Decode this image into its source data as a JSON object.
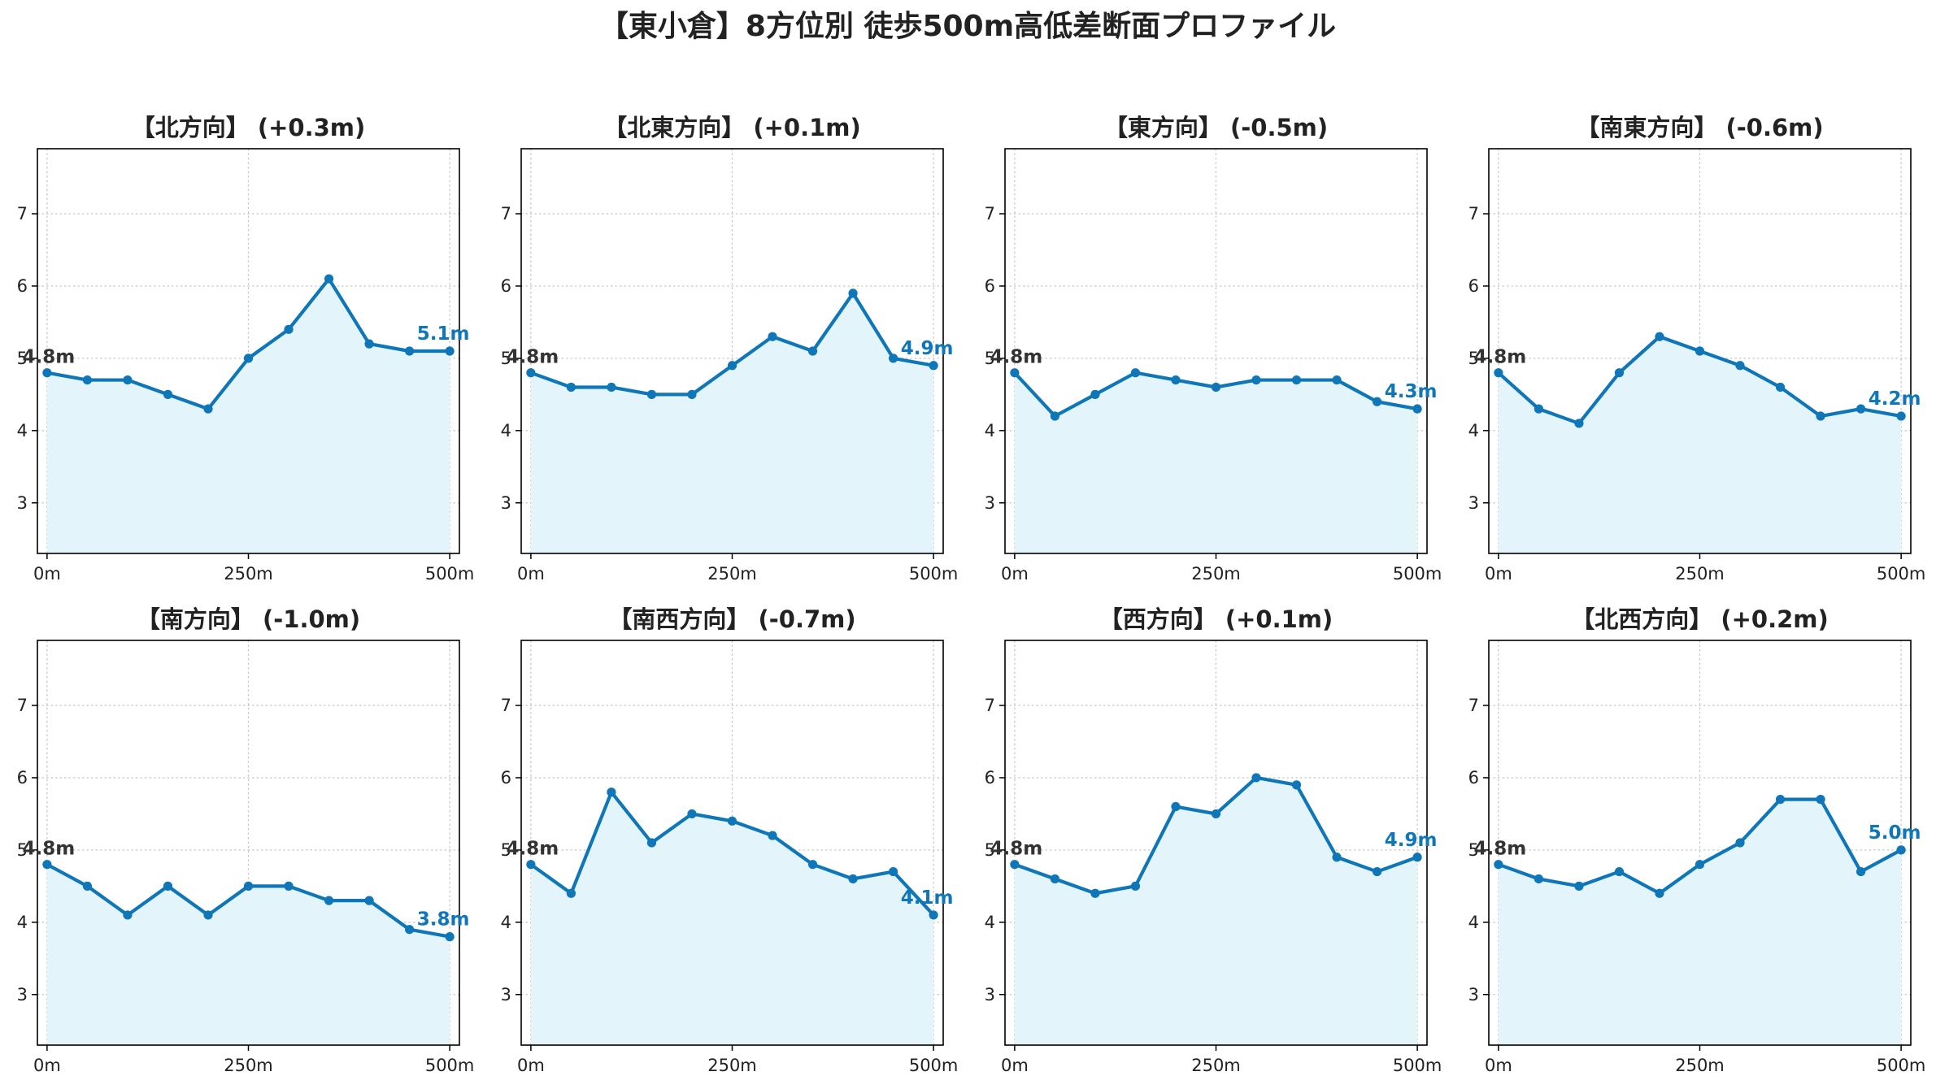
{
  "figure": {
    "title": "【東小倉】8方位別 徒歩500m高低差断面プロファイル"
  },
  "colors": {
    "line": "#0f76b8",
    "fill": "#e4f4fb",
    "grid": "#c8c8c8",
    "start_label": "#333333",
    "end_label": "#0f76b8"
  },
  "chart_data": [
    {
      "type": "area",
      "title": "【北方向】 (+0.3m)",
      "x": [
        0,
        50,
        100,
        150,
        200,
        250,
        300,
        350,
        400,
        450,
        500
      ],
      "y": [
        4.8,
        4.7,
        4.7,
        4.5,
        4.3,
        5.0,
        5.4,
        6.1,
        5.2,
        5.1,
        5.1
      ],
      "xticks": [
        "0m",
        "250m",
        "500m"
      ],
      "yticks": [
        "3",
        "4",
        "5",
        "6",
        "7"
      ],
      "start_label": "4.8m",
      "end_label": "5.1m",
      "xlim": [
        -12,
        512
      ],
      "ylim": [
        2.3,
        7.9
      ],
      "grid": true
    },
    {
      "type": "area",
      "title": "【北東方向】 (+0.1m)",
      "x": [
        0,
        50,
        100,
        150,
        200,
        250,
        300,
        350,
        400,
        450,
        500
      ],
      "y": [
        4.8,
        4.6,
        4.6,
        4.5,
        4.5,
        4.9,
        5.3,
        5.1,
        5.9,
        5.0,
        4.9
      ],
      "xticks": [
        "0m",
        "250m",
        "500m"
      ],
      "yticks": [
        "3",
        "4",
        "5",
        "6",
        "7"
      ],
      "start_label": "4.8m",
      "end_label": "4.9m",
      "xlim": [
        -12,
        512
      ],
      "ylim": [
        2.3,
        7.9
      ],
      "grid": true
    },
    {
      "type": "area",
      "title": "【東方向】 (-0.5m)",
      "x": [
        0,
        50,
        100,
        150,
        200,
        250,
        300,
        350,
        400,
        450,
        500
      ],
      "y": [
        4.8,
        4.2,
        4.5,
        4.8,
        4.7,
        4.6,
        4.7,
        4.7,
        4.7,
        4.4,
        4.3
      ],
      "xticks": [
        "0m",
        "250m",
        "500m"
      ],
      "yticks": [
        "3",
        "4",
        "5",
        "6",
        "7"
      ],
      "start_label": "4.8m",
      "end_label": "4.3m",
      "xlim": [
        -12,
        512
      ],
      "ylim": [
        2.3,
        7.9
      ],
      "grid": true
    },
    {
      "type": "area",
      "title": "【南東方向】 (-0.6m)",
      "x": [
        0,
        50,
        100,
        150,
        200,
        250,
        300,
        350,
        400,
        450,
        500
      ],
      "y": [
        4.8,
        4.3,
        4.1,
        4.8,
        5.3,
        5.1,
        4.9,
        4.6,
        4.2,
        4.3,
        4.2
      ],
      "xticks": [
        "0m",
        "250m",
        "500m"
      ],
      "yticks": [
        "3",
        "4",
        "5",
        "6",
        "7"
      ],
      "start_label": "4.8m",
      "end_label": "4.2m",
      "xlim": [
        -12,
        512
      ],
      "ylim": [
        2.3,
        7.9
      ],
      "grid": true
    },
    {
      "type": "area",
      "title": "【南方向】 (-1.0m)",
      "x": [
        0,
        50,
        100,
        150,
        200,
        250,
        300,
        350,
        400,
        450,
        500
      ],
      "y": [
        4.8,
        4.5,
        4.1,
        4.5,
        4.1,
        4.5,
        4.5,
        4.3,
        4.3,
        3.9,
        3.8
      ],
      "xticks": [
        "0m",
        "250m",
        "500m"
      ],
      "yticks": [
        "3",
        "4",
        "5",
        "6",
        "7"
      ],
      "start_label": "4.8m",
      "end_label": "3.8m",
      "xlim": [
        -12,
        512
      ],
      "ylim": [
        2.3,
        7.9
      ],
      "grid": true
    },
    {
      "type": "area",
      "title": "【南西方向】 (-0.7m)",
      "x": [
        0,
        50,
        100,
        150,
        200,
        250,
        300,
        350,
        400,
        450,
        500
      ],
      "y": [
        4.8,
        4.4,
        5.8,
        5.1,
        5.5,
        5.4,
        5.2,
        4.8,
        4.6,
        4.7,
        4.1
      ],
      "xticks": [
        "0m",
        "250m",
        "500m"
      ],
      "yticks": [
        "3",
        "4",
        "5",
        "6",
        "7"
      ],
      "start_label": "4.8m",
      "end_label": "4.1m",
      "xlim": [
        -12,
        512
      ],
      "ylim": [
        2.3,
        7.9
      ],
      "grid": true
    },
    {
      "type": "area",
      "title": "【西方向】 (+0.1m)",
      "x": [
        0,
        50,
        100,
        150,
        200,
        250,
        300,
        350,
        400,
        450,
        500
      ],
      "y": [
        4.8,
        4.6,
        4.4,
        4.5,
        5.6,
        5.5,
        6.0,
        5.9,
        4.9,
        4.7,
        4.9
      ],
      "xticks": [
        "0m",
        "250m",
        "500m"
      ],
      "yticks": [
        "3",
        "4",
        "5",
        "6",
        "7"
      ],
      "start_label": "4.8m",
      "end_label": "4.9m",
      "xlim": [
        -12,
        512
      ],
      "ylim": [
        2.3,
        7.9
      ],
      "grid": true
    },
    {
      "type": "area",
      "title": "【北西方向】 (+0.2m)",
      "x": [
        0,
        50,
        100,
        150,
        200,
        250,
        300,
        350,
        400,
        450,
        500
      ],
      "y": [
        4.8,
        4.6,
        4.5,
        4.7,
        4.4,
        4.8,
        5.1,
        5.7,
        5.7,
        4.7,
        5.0
      ],
      "xticks": [
        "0m",
        "250m",
        "500m"
      ],
      "yticks": [
        "3",
        "4",
        "5",
        "6",
        "7"
      ],
      "start_label": "4.8m",
      "end_label": "5.0m",
      "xlim": [
        -12,
        512
      ],
      "ylim": [
        2.3,
        7.9
      ],
      "grid": true
    }
  ]
}
